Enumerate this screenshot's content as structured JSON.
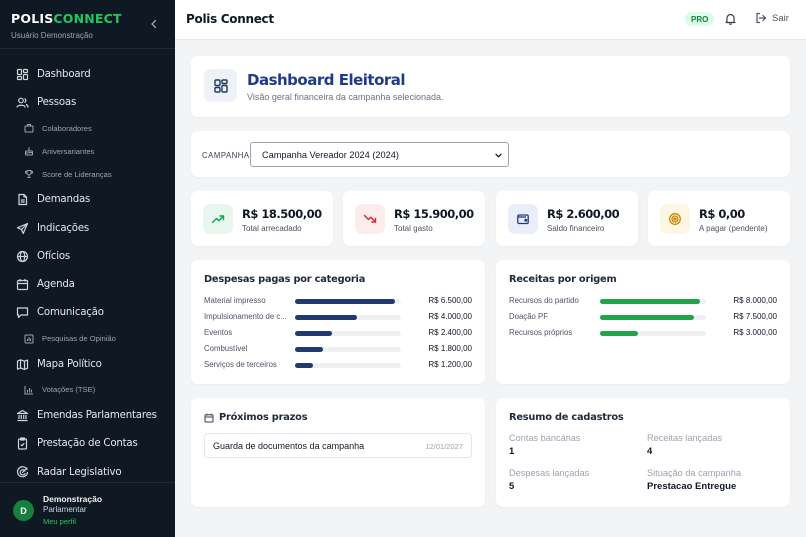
{
  "sidebar": {
    "logo_main": "POLIS",
    "logo_accent": "CONNECT",
    "subtitle": "Usuário Demonstração",
    "items": [
      {
        "label": "Dashboard",
        "icon": "dashboard-icon"
      },
      {
        "label": "Pessoas",
        "icon": "users-icon"
      },
      {
        "label": "Colaboradores",
        "icon": "briefcase-icon"
      },
      {
        "label": "Aniversariantes",
        "icon": "cake-icon"
      },
      {
        "label": "Score de Lideranças",
        "icon": "trophy-icon"
      },
      {
        "label": "Demandas",
        "icon": "file-icon"
      },
      {
        "label": "Indicações",
        "icon": "send-icon"
      },
      {
        "label": "Ofícios",
        "icon": "globe-icon"
      },
      {
        "label": "Agenda",
        "icon": "calendar-icon"
      },
      {
        "label": "Comunicação",
        "icon": "message-icon"
      },
      {
        "label": "Pesquisas de Opinião",
        "icon": "poll-icon"
      },
      {
        "label": "Mapa Político",
        "icon": "map-icon"
      },
      {
        "label": "Votações (TSE)",
        "icon": "bar-chart-icon"
      },
      {
        "label": "Emendas Parlamentares",
        "icon": "landmark-icon"
      },
      {
        "label": "Prestação de Contas",
        "icon": "clipboard-icon"
      },
      {
        "label": "Radar Legislativo",
        "icon": "radar-icon"
      }
    ],
    "user": {
      "initial": "D",
      "name": "Demonstração",
      "role": "Parlamentar",
      "link": "Meu perfil"
    }
  },
  "topbar": {
    "title": "Polis Connect",
    "badge": "PRO",
    "logout": "Sair"
  },
  "header": {
    "title": "Dashboard Eleitoral",
    "subtitle": "Visão geral financeira da campanha selecionada."
  },
  "campaign": {
    "label": "CAMPANHA",
    "selected": "Campanha Vereador 2024 (2024)"
  },
  "kpis": [
    {
      "value": "R$ 18.500,00",
      "label": "Total arrecadado",
      "icon": "trending-up-icon",
      "color": "#16a34a",
      "bg": "#e8f7ee"
    },
    {
      "value": "R$ 15.900,00",
      "label": "Total gasto",
      "icon": "trending-down-icon",
      "color": "#dc2626",
      "bg": "#fdecec"
    },
    {
      "value": "R$ 2.600,00",
      "label": "Saldo financeiro",
      "icon": "wallet-icon",
      "color": "#1e3a8a",
      "bg": "#eaeef8"
    },
    {
      "value": "R$ 0,00",
      "label": "A pagar (pendente)",
      "icon": "coin-icon",
      "color": "#ca8a04",
      "bg": "#fdf6e3"
    }
  ],
  "expenses": {
    "title": "Despesas pagas por categoria",
    "color": "#1e3a6e",
    "rows": [
      {
        "label": "Material impresso",
        "amount": "R$ 6.500,00",
        "value": 6500
      },
      {
        "label": "Impulsionamento de c...",
        "amount": "R$ 4.000,00",
        "value": 4000
      },
      {
        "label": "Eventos",
        "amount": "R$ 2.400,00",
        "value": 2400
      },
      {
        "label": "Combustível",
        "amount": "R$ 1.800,00",
        "value": 1800
      },
      {
        "label": "Serviços de terceiros",
        "amount": "R$ 1.200,00",
        "value": 1200
      }
    ]
  },
  "revenues": {
    "title": "Receitas por origem",
    "color": "#22a34a",
    "rows": [
      {
        "label": "Recursos do partido",
        "amount": "R$ 8.000,00",
        "value": 8000
      },
      {
        "label": "Doação PF",
        "amount": "R$ 7.500,00",
        "value": 7500
      },
      {
        "label": "Recursos próprios",
        "amount": "R$ 3.000,00",
        "value": 3000
      }
    ]
  },
  "deadlines": {
    "title": "Próximos prazos",
    "items": [
      {
        "name": "Guarda de documentos da campanha",
        "date": "12/01/2027"
      }
    ]
  },
  "summary": {
    "title": "Resumo de cadastros",
    "fields": [
      {
        "label": "Contas bancárias",
        "value": "1"
      },
      {
        "label": "Receitas lançadas",
        "value": "4"
      },
      {
        "label": "Despesas lançadas",
        "value": "5"
      },
      {
        "label": "Situação da campanha",
        "value": "Prestacao Entregue"
      }
    ]
  }
}
